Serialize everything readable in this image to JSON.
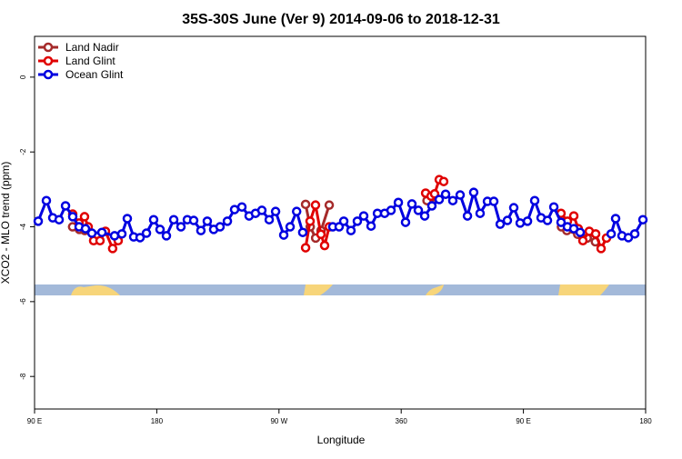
{
  "chart_data": {
    "type": "line",
    "title": "35S-30S June (Ver 9)   2014-09-06 to 2018-12-31",
    "x_label": "Longitude",
    "y_label": "XCO2 - MLO trend (ppm)",
    "xlim": [
      90,
      540
    ],
    "ylim": [
      -8.87,
      1.09
    ],
    "xticks": [
      {
        "value": 90,
        "label": "90 E"
      },
      {
        "value": 180,
        "label": "180"
      },
      {
        "value": 270,
        "label": "90 W"
      },
      360,
      {
        "value": 450,
        "label": "90 E"
      },
      {
        "value": 540,
        "label": "180"
      }
    ],
    "yticks": [
      0,
      -2,
      -4,
      -6,
      -8
    ],
    "legend": "top-left",
    "series": [
      {
        "name": "Land Nadir",
        "color": "#a52a2a",
        "x": [
          118,
          123,
          127,
          null,
          289.6,
          293,
          297,
          301,
          307,
          null,
          379,
          384,
          null,
          478,
          482,
          490,
          497,
          503
        ],
        "values": [
          -4.0,
          -4.07,
          -4.1,
          null,
          -3.4,
          -4.0,
          -4.3,
          -4.1,
          -3.42,
          null,
          -3.3,
          -3.2,
          null,
          -4.0,
          -4.1,
          -4.2,
          -4.3,
          -4.4
        ]
      },
      {
        "name": "Land Glint",
        "color": "#e00000",
        "x": [
          118.1,
          122.8,
          126.8,
          129.5,
          133.5,
          138.2,
          142.2,
          147.5,
          151.6,
          null,
          289.6,
          292.9,
          296.9,
          300.9,
          303.6,
          307,
          null,
          378,
          382,
          384.6,
          388,
          391.3,
          null,
          477.7,
          482.4,
          487.1,
          490.4,
          493.8,
          498.5,
          503.2,
          507.2,
          511.2
        ],
        "values": [
          -3.66,
          -3.9,
          -3.73,
          -4.0,
          -4.37,
          -4.37,
          -4.12,
          -4.58,
          -4.37,
          null,
          -4.56,
          -3.85,
          -3.42,
          -4.2,
          -4.5,
          -4.0,
          null,
          -3.1,
          -3.18,
          -3.12,
          -2.74,
          -2.79,
          null,
          -3.64,
          -3.85,
          -3.71,
          -4.05,
          -4.37,
          -4.12,
          -4.19,
          -4.58,
          -4.3
        ]
      },
      {
        "name": "Ocean Glint",
        "color": "#0000e0",
        "x": [
          92.7,
          98.7,
          103.4,
          108.1,
          112.8,
          118.1,
          122.8,
          127.5,
          132.2,
          139.6,
          148.9,
          154.3,
          158.3,
          163,
          167.7,
          172.4,
          177.7,
          182.4,
          187.1,
          192.5,
          197.8,
          202.5,
          207.2,
          212.5,
          217.2,
          221.9,
          226.6,
          232,
          237.3,
          242.7,
          248,
          252.7,
          257.4,
          262.8,
          267.5,
          273.5,
          278.2,
          283,
          287.5,
          null,
          309.6,
          314.3,
          317.7,
          323,
          327.7,
          332.4,
          337.8,
          342.5,
          347.8,
          352.5,
          357.9,
          363.2,
          367.9,
          372.6,
          377.3,
          382.6,
          388,
          392.7,
          398,
          403.4,
          408.8,
          413.4,
          418.1,
          423.5,
          428.2,
          432.9,
          438.2,
          442.9,
          447.6,
          453,
          458.3,
          463,
          467.7,
          472.4,
          477.7,
          482.4,
          487.1,
          491.8,
          null,
          514.6,
          517.9,
          522.6,
          527.3,
          532,
          538
        ],
        "values": [
          -3.85,
          -3.3,
          -3.76,
          -3.81,
          -3.44,
          -3.73,
          -4.0,
          -4.05,
          -4.17,
          -4.15,
          -4.24,
          -4.19,
          -3.78,
          -4.27,
          -4.29,
          -4.17,
          -3.81,
          -4.07,
          -4.24,
          -3.81,
          -4.0,
          -3.81,
          -3.83,
          -4.1,
          -3.85,
          -4.07,
          -4.0,
          -3.85,
          -3.54,
          -3.47,
          -3.71,
          -3.64,
          -3.56,
          -3.81,
          -3.59,
          -4.22,
          -4.0,
          -3.59,
          -4.15,
          null,
          -4.0,
          -4.0,
          -3.85,
          -4.1,
          -3.85,
          -3.71,
          -3.98,
          -3.64,
          -3.64,
          -3.56,
          -3.35,
          -3.88,
          -3.39,
          -3.56,
          -3.71,
          -3.44,
          -3.27,
          -3.13,
          -3.3,
          -3.15,
          -3.71,
          -3.08,
          -3.64,
          -3.32,
          -3.32,
          -3.93,
          -3.83,
          -3.49,
          -3.9,
          -3.85,
          -3.3,
          -3.76,
          -3.83,
          -3.47,
          -3.88,
          -4.0,
          -4.05,
          -4.15,
          null,
          -4.19,
          -3.78,
          -4.24,
          -4.29,
          -4.19,
          -3.81
        ]
      }
    ]
  }
}
